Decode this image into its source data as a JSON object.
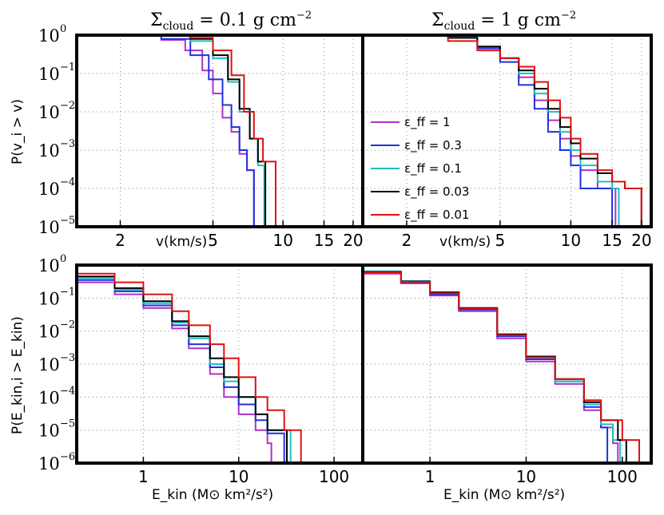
{
  "titles": {
    "left": {
      "sigma": "Σ",
      "sub": "cloud",
      "value": " = 0.1 g cm",
      "sup": "−2"
    },
    "right": {
      "sigma": "Σ",
      "sub": "cloud",
      "value": " = 1 g cm",
      "sup": "−2"
    }
  },
  "axis_labels": {
    "top_y": "P(v_i > v)",
    "bottom_y": "P(E_kin,i > E_kin)",
    "top_x": "v(km/s)",
    "bottom_x": "E_kin (M⊙ km²/s²)"
  },
  "legend": [
    "ε_ff = 1",
    "ε_ff = 0.3",
    "ε_ff = 0.1",
    "ε_ff = 0.03",
    "ε_ff = 0.01"
  ],
  "colors": {
    "eff1": "#b030c8",
    "eff03": "#2030e0",
    "eff01": "#20c0c0",
    "eff003": "#000000",
    "eff001": "#e01010"
  },
  "chart_data": [
    {
      "type": "line",
      "panel": "top-left",
      "title": "Σcloud = 0.1 g cm−2",
      "xlabel": "v(km/s)",
      "ylabel": "P(v_i > v)",
      "xscale": "log",
      "yscale": "log",
      "xlim": [
        1.3,
        22
      ],
      "ylim": [
        1e-05,
        1
      ],
      "xticks": [
        2,
        5,
        10,
        15,
        20
      ],
      "yticks": [
        1e-05,
        0.0001,
        0.001,
        0.01,
        0.1,
        1
      ],
      "grid": true,
      "series": [
        {
          "name": "ε_ff = 1",
          "x": [
            1.3,
            2,
            3,
            3.8,
            4.5,
            5.0,
            5.5,
            6.0,
            6.5,
            7.0,
            7.5,
            7.5
          ],
          "y": [
            1,
            0.97,
            0.75,
            0.4,
            0.12,
            0.03,
            0.007,
            0.003,
            0.0008,
            0.0003,
            0.0001,
            1e-05
          ]
        },
        {
          "name": "ε_ff = 0.3",
          "x": [
            1.3,
            2,
            3,
            4,
            4.8,
            5.5,
            6,
            6.5,
            7,
            7.5,
            7.5
          ],
          "y": [
            1,
            0.98,
            0.8,
            0.3,
            0.07,
            0.015,
            0.004,
            0.001,
            0.0003,
            0.0001,
            1e-05
          ]
        },
        {
          "name": "ε_ff = 0.1",
          "x": [
            1.3,
            2,
            3,
            4,
            5,
            5.8,
            6.5,
            7.2,
            7.8,
            8.3,
            8.3
          ],
          "y": [
            1,
            0.99,
            0.95,
            0.7,
            0.25,
            0.06,
            0.01,
            0.002,
            0.0004,
            0.0001,
            1e-05
          ]
        },
        {
          "name": "ε_ff = 0.03",
          "x": [
            1.3,
            2,
            3,
            4,
            5,
            5.8,
            6.5,
            7.2,
            7.8,
            8.4,
            8.4
          ],
          "y": [
            1,
            0.99,
            0.96,
            0.8,
            0.3,
            0.07,
            0.012,
            0.002,
            0.0005,
            0.00015,
            1e-05
          ]
        },
        {
          "name": "ε_ff = 0.01",
          "x": [
            1.3,
            2,
            3,
            4,
            5,
            6,
            6.8,
            7.5,
            8.2,
            9.3,
            9.3
          ],
          "y": [
            1,
            0.99,
            0.97,
            0.85,
            0.4,
            0.09,
            0.01,
            0.002,
            0.0005,
            0.0001,
            1e-05
          ]
        }
      ]
    },
    {
      "type": "line",
      "panel": "top-right",
      "title": "Σcloud = 1 g cm−2",
      "xlabel": "v(km/s)",
      "xscale": "log",
      "yscale": "log",
      "xlim": [
        1.3,
        22
      ],
      "ylim": [
        1e-05,
        1
      ],
      "xticks": [
        2,
        5,
        10,
        15,
        20
      ],
      "yticks": [
        1e-05,
        0.0001,
        0.001,
        0.01,
        0.1,
        1
      ],
      "grid": true,
      "series": [
        {
          "name": "ε_ff = 1",
          "x": [
            1.3,
            2,
            3,
            4,
            5,
            6,
            7,
            8,
            9,
            10,
            11,
            13,
            15,
            15.5,
            15.5
          ],
          "y": [
            1,
            0.99,
            0.85,
            0.5,
            0.25,
            0.08,
            0.02,
            0.006,
            0.002,
            0.0007,
            0.0003,
            0.0001,
            0.0001,
            4e-05,
            1e-05
          ]
        },
        {
          "name": "ε_ff = 0.3",
          "x": [
            1.3,
            2,
            3,
            4,
            5,
            6,
            7,
            8,
            9,
            10,
            11,
            13,
            15,
            15
          ],
          "y": [
            1,
            0.99,
            0.85,
            0.45,
            0.2,
            0.05,
            0.012,
            0.003,
            0.001,
            0.0004,
            0.0001,
            0.0001,
            4e-05,
            1e-05
          ]
        },
        {
          "name": "ε_ff = 0.1",
          "x": [
            1.3,
            2,
            3,
            4,
            5,
            6,
            7,
            8,
            9,
            10,
            11,
            13,
            15,
            16,
            16
          ],
          "y": [
            1,
            0.99,
            0.85,
            0.5,
            0.25,
            0.1,
            0.03,
            0.01,
            0.003,
            0.001,
            0.0004,
            0.00015,
            0.0001,
            4e-05,
            1e-05
          ]
        },
        {
          "name": "ε_ff = 0.03",
          "x": [
            1.3,
            2,
            3,
            4,
            5,
            6,
            7,
            8,
            9,
            10,
            11,
            13,
            15,
            17,
            20,
            20
          ],
          "y": [
            1,
            0.99,
            0.85,
            0.5,
            0.25,
            0.12,
            0.04,
            0.012,
            0.004,
            0.0015,
            0.0006,
            0.00025,
            0.00015,
            0.0001,
            4e-05,
            1e-05
          ]
        },
        {
          "name": "ε_ff = 0.01",
          "x": [
            1.3,
            2,
            3,
            4,
            5,
            6,
            7,
            8,
            9,
            10,
            11,
            13,
            15,
            17,
            20,
            20
          ],
          "y": [
            1,
            0.97,
            0.7,
            0.4,
            0.25,
            0.15,
            0.06,
            0.02,
            0.007,
            0.002,
            0.0008,
            0.0003,
            0.00015,
            0.0001,
            2e-05,
            1e-05
          ]
        }
      ]
    },
    {
      "type": "line",
      "panel": "bottom-left",
      "xlabel": "E_kin (M⊙ km²/s²)",
      "ylabel": "P(E_kin,i > E_kin)",
      "xscale": "log",
      "yscale": "log",
      "xlim": [
        0.2,
        200
      ],
      "ylim": [
        1e-06,
        1
      ],
      "xticks": [
        1,
        10,
        100
      ],
      "yticks": [
        1e-06,
        1e-05,
        0.0001,
        0.001,
        0.01,
        0.1,
        1
      ],
      "grid": true,
      "series": [
        {
          "name": "ε_ff = 1",
          "x": [
            0.2,
            0.5,
            1,
            2,
            3,
            5,
            7,
            10,
            15,
            20,
            22,
            22
          ],
          "y": [
            0.3,
            0.13,
            0.05,
            0.012,
            0.003,
            0.0005,
            0.0001,
            3e-05,
            1e-05,
            4e-06,
            2e-06,
            1e-06
          ]
        },
        {
          "name": "ε_ff = 0.3",
          "x": [
            0.2,
            0.5,
            1,
            2,
            3,
            5,
            7,
            10,
            15,
            20,
            30,
            30
          ],
          "y": [
            0.35,
            0.16,
            0.06,
            0.015,
            0.004,
            0.0008,
            0.0002,
            6e-05,
            2e-05,
            8e-06,
            2e-06,
            1e-06
          ]
        },
        {
          "name": "ε_ff = 0.1",
          "x": [
            0.2,
            0.5,
            1,
            2,
            3,
            5,
            7,
            10,
            15,
            20,
            35,
            35
          ],
          "y": [
            0.4,
            0.18,
            0.07,
            0.018,
            0.006,
            0.001,
            0.0003,
            0.0001,
            3e-05,
            1e-05,
            2e-06,
            1e-06
          ]
        },
        {
          "name": "ε_ff = 0.03",
          "x": [
            0.2,
            0.5,
            1,
            2,
            3,
            5,
            7,
            10,
            15,
            20,
            32,
            32
          ],
          "y": [
            0.45,
            0.2,
            0.08,
            0.02,
            0.007,
            0.0015,
            0.0004,
            0.0001,
            3e-05,
            1e-05,
            2e-06,
            1e-06
          ]
        },
        {
          "name": "ε_ff = 0.01",
          "x": [
            0.2,
            0.5,
            1,
            2,
            3,
            5,
            7,
            10,
            15,
            20,
            30,
            45,
            45
          ],
          "y": [
            0.55,
            0.3,
            0.13,
            0.04,
            0.015,
            0.004,
            0.0015,
            0.0004,
            0.0001,
            4e-05,
            1e-05,
            2e-06,
            1e-06
          ]
        }
      ]
    },
    {
      "type": "line",
      "panel": "bottom-right",
      "xlabel": "E_kin (M⊙ km²/s²)",
      "xscale": "log",
      "yscale": "log",
      "xlim": [
        0.2,
        200
      ],
      "ylim": [
        1e-06,
        1
      ],
      "xticks": [
        1,
        10,
        100
      ],
      "yticks": [
        1e-06,
        1e-05,
        0.0001,
        0.001,
        0.01,
        0.1,
        1
      ],
      "grid": true,
      "series": [
        {
          "name": "ε_ff = 1",
          "x": [
            0.2,
            0.5,
            1,
            2,
            5,
            10,
            20,
            40,
            60,
            80,
            90,
            90
          ],
          "y": [
            0.55,
            0.28,
            0.12,
            0.04,
            0.006,
            0.0012,
            0.00025,
            4e-05,
            1.2e-05,
            4e-06,
            2e-06,
            1e-06
          ]
        },
        {
          "name": "ε_ff = 0.3",
          "x": [
            0.2,
            0.5,
            1,
            2,
            5,
            10,
            20,
            40,
            60,
            70,
            70
          ],
          "y": [
            0.6,
            0.3,
            0.13,
            0.045,
            0.007,
            0.0014,
            0.0003,
            5e-05,
            1.2e-05,
            2e-06,
            1e-06
          ]
        },
        {
          "name": "ε_ff = 0.1",
          "x": [
            0.2,
            0.5,
            1,
            2,
            5,
            10,
            20,
            40,
            60,
            80,
            95,
            95
          ],
          "y": [
            0.65,
            0.33,
            0.15,
            0.05,
            0.008,
            0.0016,
            0.0003,
            6e-05,
            1.5e-05,
            5e-06,
            2e-06,
            1e-06
          ]
        },
        {
          "name": "ε_ff = 0.03",
          "x": [
            0.2,
            0.5,
            1,
            2,
            5,
            10,
            20,
            40,
            60,
            90,
            110,
            110
          ],
          "y": [
            0.62,
            0.32,
            0.15,
            0.05,
            0.008,
            0.0017,
            0.00035,
            7e-05,
            2e-05,
            5e-06,
            2e-06,
            1e-06
          ]
        },
        {
          "name": "ε_ff = 0.01",
          "x": [
            0.2,
            0.5,
            1,
            2,
            5,
            10,
            20,
            40,
            60,
            100,
            150,
            150
          ],
          "y": [
            0.6,
            0.31,
            0.14,
            0.048,
            0.0075,
            0.0016,
            0.00035,
            8e-05,
            2e-05,
            5e-06,
            2e-06,
            1e-06
          ]
        }
      ]
    }
  ]
}
